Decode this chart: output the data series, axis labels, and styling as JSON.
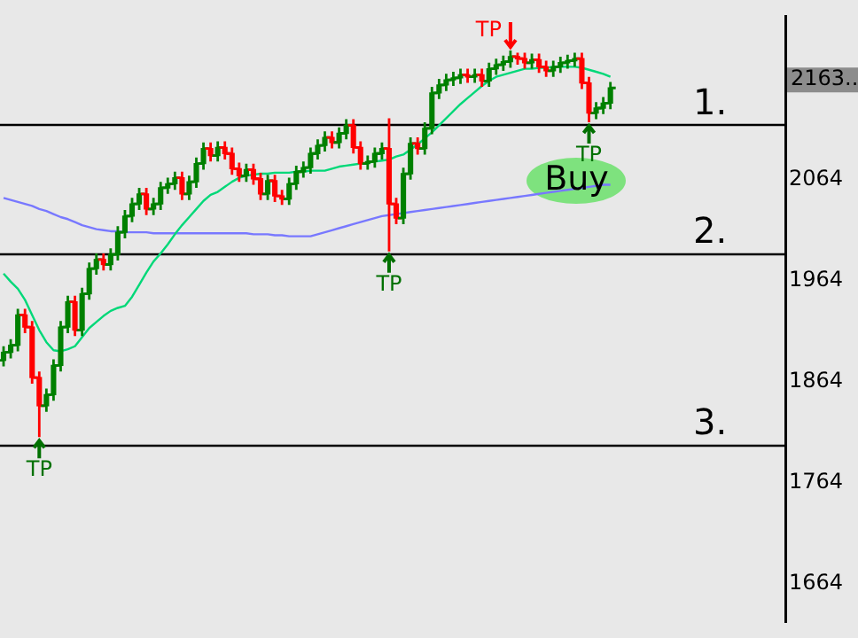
{
  "chart_data": {
    "type": "candlestick",
    "categories": [
      null,
      null,
      null,
      null,
      null,
      null,
      null,
      null,
      null,
      null,
      null,
      null,
      null,
      null,
      null,
      null,
      null,
      null,
      null,
      null,
      null,
      null,
      null,
      null,
      null,
      null,
      null,
      null,
      null,
      null,
      null,
      null,
      null,
      null,
      null,
      null,
      null,
      null,
      null,
      null,
      null,
      null,
      null,
      null,
      null,
      null,
      null,
      null,
      null,
      null,
      null,
      null,
      null,
      null,
      null,
      null,
      null,
      null,
      null,
      null,
      null,
      null,
      null,
      null,
      null,
      null,
      null,
      null,
      null,
      null,
      null,
      null,
      null,
      null,
      null,
      null,
      null,
      null,
      null,
      null,
      null,
      null,
      null,
      null,
      null,
      null,
      null,
      null,
      null,
      null,
      null,
      null,
      null,
      null,
      null,
      null,
      null,
      null,
      null,
      null,
      null,
      null,
      null,
      null,
      null,
      null,
      null,
      null,
      null,
      null
    ],
    "ohlc": [
      [
        1885,
        1899,
        1879,
        1893
      ],
      [
        1893,
        1906,
        1887,
        1900
      ],
      [
        1900,
        1936,
        1894,
        1930
      ],
      [
        1930,
        1936,
        1912,
        1918
      ],
      [
        1918,
        1924,
        1862,
        1868
      ],
      [
        1868,
        1874,
        1809,
        1840
      ],
      [
        1840,
        1857,
        1834,
        1851
      ],
      [
        1851,
        1886,
        1845,
        1880
      ],
      [
        1880,
        1924,
        1874,
        1918
      ],
      [
        1918,
        1949,
        1912,
        1943
      ],
      [
        1943,
        1949,
        1909,
        1915
      ],
      [
        1915,
        1957,
        1909,
        1951
      ],
      [
        1951,
        1982,
        1945,
        1976
      ],
      [
        1976,
        1991,
        1970,
        1985
      ],
      [
        1985,
        1991,
        1974,
        1980
      ],
      [
        1980,
        1996,
        1974,
        1990
      ],
      [
        1990,
        2018,
        1984,
        2012
      ],
      [
        2012,
        2034,
        2006,
        2028
      ],
      [
        2028,
        2046,
        2022,
        2040
      ],
      [
        2040,
        2056,
        2034,
        2050
      ],
      [
        2050,
        2056,
        2029,
        2035
      ],
      [
        2035,
        2046,
        2029,
        2040
      ],
      [
        2040,
        2062,
        2034,
        2056
      ],
      [
        2056,
        2066,
        2050,
        2060
      ],
      [
        2060,
        2072,
        2054,
        2066
      ],
      [
        2066,
        2072,
        2044,
        2050
      ],
      [
        2050,
        2068,
        2044,
        2062
      ],
      [
        2062,
        2086,
        2056,
        2080
      ],
      [
        2080,
        2101,
        2074,
        2095
      ],
      [
        2095,
        2101,
        2082,
        2088
      ],
      [
        2088,
        2102,
        2082,
        2096
      ],
      [
        2096,
        2102,
        2084,
        2090
      ],
      [
        2090,
        2096,
        2069,
        2075
      ],
      [
        2075,
        2081,
        2062,
        2068
      ],
      [
        2068,
        2080,
        2062,
        2074
      ],
      [
        2074,
        2080,
        2059,
        2065
      ],
      [
        2065,
        2071,
        2044,
        2050
      ],
      [
        2050,
        2069,
        2044,
        2063
      ],
      [
        2063,
        2069,
        2042,
        2048
      ],
      [
        2048,
        2054,
        2039,
        2045
      ],
      [
        2045,
        2066,
        2039,
        2060
      ],
      [
        2060,
        2078,
        2054,
        2072
      ],
      [
        2072,
        2082,
        2066,
        2076
      ],
      [
        2076,
        2096,
        2070,
        2090
      ],
      [
        2090,
        2104,
        2084,
        2098
      ],
      [
        2098,
        2112,
        2092,
        2106
      ],
      [
        2106,
        2112,
        2095,
        2101
      ],
      [
        2101,
        2116,
        2095,
        2110
      ],
      [
        2110,
        2124,
        2104,
        2118
      ],
      [
        2118,
        2124,
        2090,
        2096
      ],
      [
        2096,
        2102,
        2074,
        2080
      ],
      [
        2080,
        2088,
        2074,
        2082
      ],
      [
        2082,
        2096,
        2076,
        2090
      ],
      [
        2090,
        2101,
        2084,
        2095
      ],
      [
        2095,
        2125,
        1993,
        2040
      ],
      [
        2040,
        2046,
        2020,
        2026
      ],
      [
        2026,
        2076,
        2020,
        2070
      ],
      [
        2070,
        2106,
        2064,
        2100
      ],
      [
        2100,
        2106,
        2089,
        2095
      ],
      [
        2095,
        2121,
        2089,
        2115
      ],
      [
        2115,
        2156,
        2109,
        2150
      ],
      [
        2150,
        2164,
        2144,
        2158
      ],
      [
        2158,
        2169,
        2152,
        2163
      ],
      [
        2163,
        2171,
        2157,
        2165
      ],
      [
        2165,
        2174,
        2159,
        2168
      ],
      [
        2168,
        2174,
        2160,
        2166
      ],
      [
        2166,
        2174,
        2160,
        2168
      ],
      [
        2168,
        2174,
        2156,
        2162
      ],
      [
        2162,
        2180,
        2156,
        2174
      ],
      [
        2174,
        2184,
        2168,
        2178
      ],
      [
        2178,
        2187,
        2172,
        2181
      ],
      [
        2181,
        2192,
        2175,
        2186
      ],
      [
        2186,
        2190,
        2178,
        2184
      ],
      [
        2184,
        2190,
        2174,
        2180
      ],
      [
        2180,
        2189,
        2174,
        2183
      ],
      [
        2183,
        2189,
        2170,
        2176
      ],
      [
        2176,
        2182,
        2166,
        2172
      ],
      [
        2172,
        2182,
        2166,
        2176
      ],
      [
        2176,
        2186,
        2170,
        2180
      ],
      [
        2180,
        2188,
        2174,
        2182
      ],
      [
        2182,
        2190,
        2176,
        2184
      ],
      [
        2184,
        2190,
        2154,
        2160
      ],
      [
        2160,
        2166,
        2121,
        2130
      ],
      [
        2130,
        2141,
        2124,
        2135
      ],
      [
        2135,
        2146,
        2129,
        2140
      ],
      [
        2140,
        2161,
        2134,
        2155
      ],
      null,
      null,
      null,
      null,
      null,
      null,
      null,
      null,
      null,
      null,
      null,
      null,
      null,
      null,
      null,
      null,
      null,
      null,
      null,
      null,
      null,
      null,
      null,
      null
    ],
    "colors": [
      "#008000",
      "#008000",
      "#008000",
      "#ff0000",
      "#ff0000",
      "#ff0000",
      "#008000",
      "#008000",
      "#008000",
      "#008000",
      "#ff0000",
      "#008000",
      "#008000",
      "#008000",
      "#ff0000",
      "#008000",
      "#008000",
      "#008000",
      "#008000",
      "#008000",
      "#ff0000",
      "#008000",
      "#008000",
      "#008000",
      "#008000",
      "#ff0000",
      "#008000",
      "#008000",
      "#008000",
      "#ff0000",
      "#008000",
      "#ff0000",
      "#ff0000",
      "#ff0000",
      "#008000",
      "#ff0000",
      "#ff0000",
      "#008000",
      "#ff0000",
      "#ff0000",
      "#008000",
      "#008000",
      "#008000",
      "#008000",
      "#008000",
      "#008000",
      "#ff0000",
      "#008000",
      "#008000",
      "#ff0000",
      "#ff0000",
      "#008000",
      "#008000",
      "#008000",
      "#ff0000",
      "#ff0000",
      "#008000",
      "#008000",
      "#ff0000",
      "#008000",
      "#008000",
      "#008000",
      "#008000",
      "#008000",
      "#008000",
      "#ff0000",
      "#008000",
      "#ff0000",
      "#008000",
      "#008000",
      "#008000",
      "#008000",
      "#ff0000",
      "#ff0000",
      "#008000",
      "#ff0000",
      "#ff0000",
      "#008000",
      "#008000",
      "#008000",
      "#008000",
      "#ff0000",
      "#ff0000",
      "#008000",
      "#008000",
      "#008000",
      null,
      null,
      null,
      null,
      null,
      null,
      null,
      null,
      null,
      null,
      null,
      null,
      null,
      null,
      null,
      null,
      null,
      null,
      null,
      null,
      null,
      null,
      null,
      null
    ],
    "series": [
      {
        "type": "line",
        "color": "#00d878",
        "values": [
          1971,
          1963,
          1956,
          1945,
          1930,
          1915,
          1903,
          1895,
          1894,
          1896,
          1899,
          1908,
          1917,
          1923,
          1929,
          1934,
          1937,
          1939,
          1948,
          1960,
          1972,
          1983,
          1991,
          2000,
          2010,
          2019,
          2027,
          2035,
          2043,
          2049,
          2052,
          2057,
          2062,
          2066,
          2068,
          2069,
          2070,
          2070,
          2071,
          2071,
          2071,
          2072,
          2072,
          2073,
          2073,
          2073,
          2075,
          2077,
          2078,
          2079,
          2080,
          2081,
          2082,
          2083,
          2084,
          2087,
          2089,
          2094,
          2099,
          2105,
          2111,
          2118,
          2125,
          2132,
          2139,
          2145,
          2151,
          2157,
          2162,
          2166,
          2168,
          2170,
          2172,
          2174,
          2174,
          2175,
          2175,
          2176,
          2176,
          2176,
          2176,
          2175,
          2173,
          2171,
          2169,
          2166,
          null,
          null,
          null,
          null,
          null,
          null,
          null,
          null,
          null,
          null,
          null,
          null,
          null,
          null,
          null,
          null,
          null,
          null,
          null,
          null,
          null,
          null,
          null,
          null
        ]
      },
      {
        "type": "line",
        "color": "#7878ff",
        "values": [
          2046,
          2044,
          2042,
          2040,
          2038,
          2035,
          2033,
          2030,
          2027,
          2025,
          2022,
          2019,
          2017,
          2015,
          2014,
          2013,
          2013,
          2012,
          2012,
          2012,
          2012,
          2011,
          2011,
          2011,
          2011,
          2011,
          2011,
          2011,
          2011,
          2011,
          2011,
          2011,
          2011,
          2011,
          2011,
          2010,
          2010,
          2010,
          2009,
          2009,
          2008,
          2008,
          2008,
          2008,
          2010,
          2012,
          2014,
          2016,
          2018,
          2020,
          2022,
          2024,
          2026,
          2028,
          2029,
          2030,
          2031,
          2032,
          2033,
          2034,
          2035,
          2036,
          2037,
          2038,
          2039,
          2040,
          2041,
          2042,
          2043,
          2044,
          2045,
          2046,
          2047,
          2048,
          2049,
          2050,
          2051,
          2052,
          2053,
          2054,
          2055,
          2056,
          2057,
          2058,
          2059,
          2059,
          null,
          null,
          null,
          null,
          null,
          null,
          null,
          null,
          null,
          null,
          null,
          null,
          null,
          null,
          null,
          null,
          null,
          null,
          null,
          null,
          null,
          null,
          null,
          null
        ]
      }
    ],
    "ylim": [
      1626,
      2226
    ],
    "yticks": [
      1664,
      1764,
      1864,
      1964,
      2064,
      {
        "value": 2163,
        "label": "2163..."
      }
    ],
    "tick_labels": "y",
    "ref_lines": [
      {
        "axis": "y",
        "value": 2119,
        "color": "#000000"
      },
      {
        "axis": "y",
        "value": 1991,
        "color": "#000000"
      },
      {
        "axis": "y",
        "value": 1802,
        "color": "#000000"
      }
    ],
    "annotations": [
      {
        "text": "1.",
        "y": 2119
      },
      {
        "text": "2.",
        "y": 1991
      },
      {
        "text": "3.",
        "y": 1802
      },
      {
        "text": "TP",
        "y": 1809
      },
      {
        "text": "TP",
        "y": 1993
      },
      {
        "text": "TP",
        "y": 2121
      },
      "TP",
      "Buy"
    ],
    "grid": false,
    "legend": false
  }
}
